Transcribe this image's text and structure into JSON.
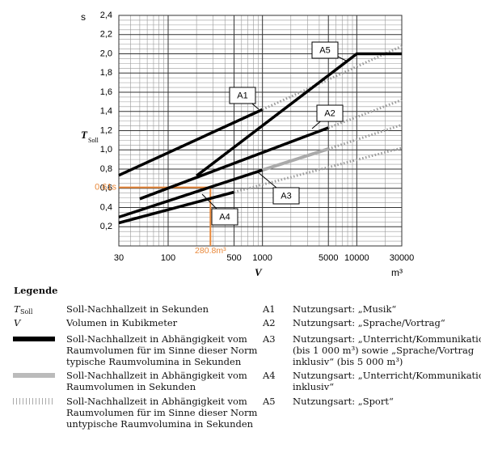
{
  "chart_data": {
    "type": "line",
    "y_unit": "s",
    "y_symbol": "T",
    "y_symbol_sub": "Soll",
    "x_symbol": "V",
    "x_unit": "m³",
    "x_scale": "log",
    "grid": true,
    "xlim": [
      30,
      30000
    ],
    "ylim": [
      0,
      2.4
    ],
    "xticks": [
      30,
      100,
      500,
      1000,
      5000,
      10000,
      30000
    ],
    "xminor_ticks": [
      40,
      50,
      60,
      70,
      80,
      90,
      200,
      300,
      400,
      600,
      700,
      800,
      900,
      2000,
      3000,
      4000,
      6000,
      7000,
      8000,
      9000,
      20000
    ],
    "yticks": [
      {
        "value": 0.2,
        "label": "0,2"
      },
      {
        "value": 0.4,
        "label": "0,4"
      },
      {
        "value": 0.6,
        "label": "0,6"
      },
      {
        "value": 0.8,
        "label": "0,8"
      },
      {
        "value": 1.0,
        "label": "1,0"
      },
      {
        "value": 1.2,
        "label": "1,2"
      },
      {
        "value": 1.4,
        "label": "1,4"
      },
      {
        "value": 1.6,
        "label": "1,6"
      },
      {
        "value": 1.8,
        "label": "1,8"
      },
      {
        "value": 2.0,
        "label": "2,0"
      },
      {
        "value": 2.2,
        "label": "2,2"
      },
      {
        "value": 2.4,
        "label": "2,4"
      }
    ],
    "yminor_ticks": [
      0.05,
      0.1,
      0.15,
      0.25,
      0.3,
      0.35,
      0.45,
      0.5,
      0.55,
      0.65,
      0.7,
      0.75,
      0.85,
      0.9,
      0.95,
      1.05,
      1.1,
      1.15,
      1.25,
      1.3,
      1.35,
      1.45,
      1.5,
      1.55,
      1.65,
      1.7,
      1.75,
      1.85,
      1.9,
      1.95,
      2.05,
      2.1,
      2.15,
      2.25,
      2.3,
      2.35
    ],
    "series": [
      {
        "name": "A1",
        "segments": [
          {
            "style": "solid",
            "x": [
              30,
              1000
            ],
            "values": [
              0.735,
              1.42
            ]
          },
          {
            "style": "dotted",
            "x": [
              1000,
              30000
            ],
            "values": [
              1.42,
              2.08
            ]
          }
        ]
      },
      {
        "name": "A2",
        "segments": [
          {
            "style": "solid",
            "x": [
              50,
              5000
            ],
            "values": [
              0.49,
              1.23
            ]
          },
          {
            "style": "dotted",
            "x": [
              5000,
              30000
            ],
            "values": [
              1.23,
              1.52
            ]
          }
        ]
      },
      {
        "name": "A3",
        "segments": [
          {
            "style": "solid",
            "x": [
              30,
              1000
            ],
            "values": [
              0.3,
              0.79
            ]
          },
          {
            "style": "gray",
            "x": [
              1000,
              5000
            ],
            "values": [
              0.79,
              1.01
            ]
          },
          {
            "style": "dotted",
            "x": [
              5000,
              30000
            ],
            "values": [
              1.01,
              1.26
            ]
          }
        ]
      },
      {
        "name": "A4",
        "segments": [
          {
            "style": "solid",
            "x": [
              30,
              500
            ],
            "values": [
              0.24,
              0.56
            ]
          },
          {
            "style": "dotted",
            "x": [
              500,
              30000
            ],
            "values": [
              0.56,
              1.02
            ]
          }
        ]
      },
      {
        "name": "A5",
        "segments": [
          {
            "style": "solid",
            "x": [
              200,
              10000,
              30000
            ],
            "values": [
              0.73,
              2.0,
              2.0
            ]
          }
        ]
      }
    ],
    "annotation": {
      "x": 280.8,
      "y": 0.61,
      "x_label": "280.8m³",
      "y_label": "0.61s",
      "color": "#e8883a"
    }
  },
  "legend": {
    "title": "Legende",
    "left": [
      {
        "symbol": "T",
        "symbol_sub": "Soll",
        "lines": [
          "Soll-Nachhallzeit in Sekunden"
        ]
      },
      {
        "symbol": "V",
        "lines": [
          "Volumen in Kubikmeter"
        ]
      },
      {
        "swatch": "solid",
        "lines": [
          "Soll-Nachhallzeit in Abhängigkeit vom",
          "Raumvolumen für im Sinne dieser Norm",
          "typische Raumvolumina in Sekunden"
        ]
      },
      {
        "swatch": "gray",
        "lines": [
          "Soll-Nachhallzeit in Abhängigkeit vom",
          "Raumvolumen in Sekunden"
        ]
      },
      {
        "swatch": "dotted",
        "lines": [
          "Soll-Nachhallzeit in Abhängigkeit vom",
          "Raumvolumen für im Sinne dieser Norm",
          "untypische Raumvolumina in Sekunden"
        ]
      }
    ],
    "right": [
      {
        "symbol": "A1",
        "lines": [
          "Nutzungsart: „Musik“"
        ]
      },
      {
        "symbol": "A2",
        "lines": [
          "Nutzungsart: „Sprache/Vortrag“"
        ]
      },
      {
        "symbol": "A3",
        "lines": [
          "Nutzungsart: „Unterricht/Kommunikation“",
          "(bis 1 000 m³) sowie „Sprache/Vortrag",
          "inklusiv“ (bis 5 000 m³)"
        ]
      },
      {
        "symbol": "A4",
        "lines": [
          "Nutzungsart: „Unterricht/Kommunikation",
          "inklusiv“"
        ]
      },
      {
        "symbol": "A5",
        "lines": [
          "Nutzungsart: „Sport“"
        ]
      }
    ]
  }
}
